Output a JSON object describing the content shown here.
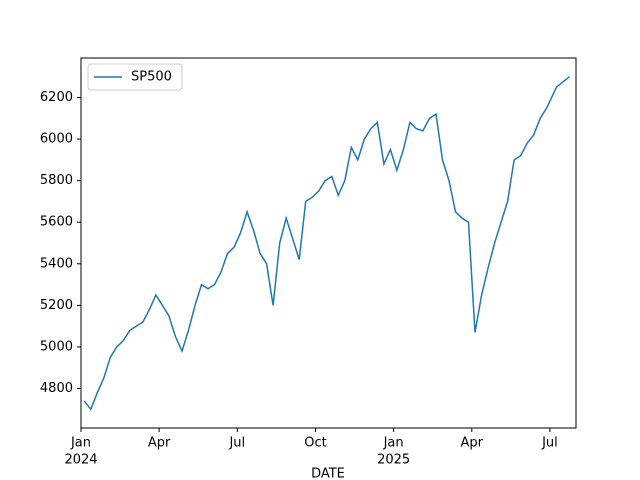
{
  "chart_data": {
    "type": "line",
    "x_label": "DATE",
    "x": [
      "2024-01",
      "2024-01",
      "2024-01",
      "2024-01",
      "2024-02",
      "2024-02",
      "2024-02",
      "2024-02",
      "2024-03",
      "2024-03",
      "2024-03",
      "2024-03",
      "2024-04",
      "2024-04",
      "2024-04",
      "2024-04",
      "2024-05",
      "2024-05",
      "2024-05",
      "2024-05",
      "2024-06",
      "2024-06",
      "2024-06",
      "2024-06",
      "2024-07",
      "2024-07",
      "2024-07",
      "2024-07",
      "2024-08",
      "2024-08",
      "2024-08",
      "2024-08",
      "2024-09",
      "2024-09",
      "2024-09",
      "2024-09",
      "2024-10",
      "2024-10",
      "2024-10",
      "2024-10",
      "2024-11",
      "2024-11",
      "2024-11",
      "2024-11",
      "2024-12",
      "2024-12",
      "2024-12",
      "2024-12",
      "2025-01",
      "2025-01",
      "2025-01",
      "2025-01",
      "2025-02",
      "2025-02",
      "2025-02",
      "2025-02",
      "2025-03",
      "2025-03",
      "2025-03",
      "2025-03",
      "2025-04",
      "2025-04",
      "2025-04",
      "2025-04",
      "2025-05",
      "2025-05",
      "2025-05",
      "2025-05",
      "2025-06",
      "2025-06",
      "2025-06",
      "2025-06",
      "2025-07",
      "2025-07"
    ],
    "series": [
      {
        "name": "SP500",
        "color": "#1f77b4",
        "values": [
          4740,
          4700,
          4780,
          4850,
          4950,
          5000,
          5030,
          5080,
          5100,
          5120,
          5180,
          5250,
          5200,
          5150,
          5050,
          4980,
          5080,
          5200,
          5300,
          5280,
          5300,
          5360,
          5450,
          5480,
          5550,
          5650,
          5560,
          5450,
          5400,
          5200,
          5500,
          5620,
          5520,
          5420,
          5700,
          5720,
          5750,
          5800,
          5820,
          5730,
          5800,
          5960,
          5900,
          6000,
          6050,
          6080,
          5880,
          5950,
          5850,
          5950,
          6080,
          6050,
          6040,
          6100,
          6120,
          5900,
          5800,
          5650,
          5620,
          5600,
          5070,
          5250,
          5380,
          5500,
          5600,
          5700,
          5900,
          5920,
          5980,
          6020,
          6100,
          6150,
          6250,
          6300
        ]
      }
    ],
    "xlim": [
      "2024-01",
      "2025-08"
    ],
    "xticks": [
      {
        "value": "2024-01",
        "label": "Jan"
      },
      {
        "value": "2024-04",
        "label": "Apr"
      },
      {
        "value": "2024-07",
        "label": "Jul"
      },
      {
        "value": "2024-10",
        "label": "Oct"
      },
      {
        "value": "2025-01",
        "label": "Jan"
      },
      {
        "value": "2025-04",
        "label": "Apr"
      },
      {
        "value": "2025-07",
        "label": "Jul"
      }
    ],
    "xtick_years": [
      {
        "value": "2024-01",
        "label": "2024"
      },
      {
        "value": "2025-01",
        "label": "2025"
      }
    ],
    "ylim": [
      4610,
      6390
    ],
    "yticks": [
      4800,
      5000,
      5200,
      5400,
      5600,
      5800,
      6000,
      6200
    ],
    "legend": "upper left",
    "grid": false
  }
}
